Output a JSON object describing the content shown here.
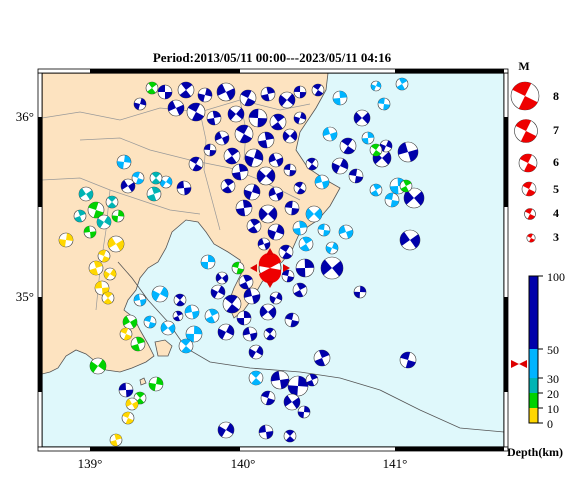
{
  "title": "Period:2013/05/11 00:00---2023/05/11 04:16",
  "latitude_labels": [
    "36°",
    "35°"
  ],
  "longitude_labels": [
    "139°",
    "140°",
    "141°"
  ],
  "magnitude_legend": {
    "title": "M",
    "scale": [
      "8",
      "7",
      "6",
      "5",
      "4",
      "3"
    ]
  },
  "depth_legend": {
    "title": "Depth(km)",
    "ticks": [
      "100",
      "50",
      "30",
      "20",
      "10",
      "0"
    ],
    "colors": {
      "deep": "#0000aa",
      "mid": "#00b4ff",
      "teal": "#00b4b4",
      "green": "#00d200",
      "yellow": "#ffd700"
    }
  },
  "colors": {
    "land": "#fde3c0",
    "sea": "#dff8fb",
    "highlight": "#ee0000",
    "marker": "#dd0000"
  }
}
